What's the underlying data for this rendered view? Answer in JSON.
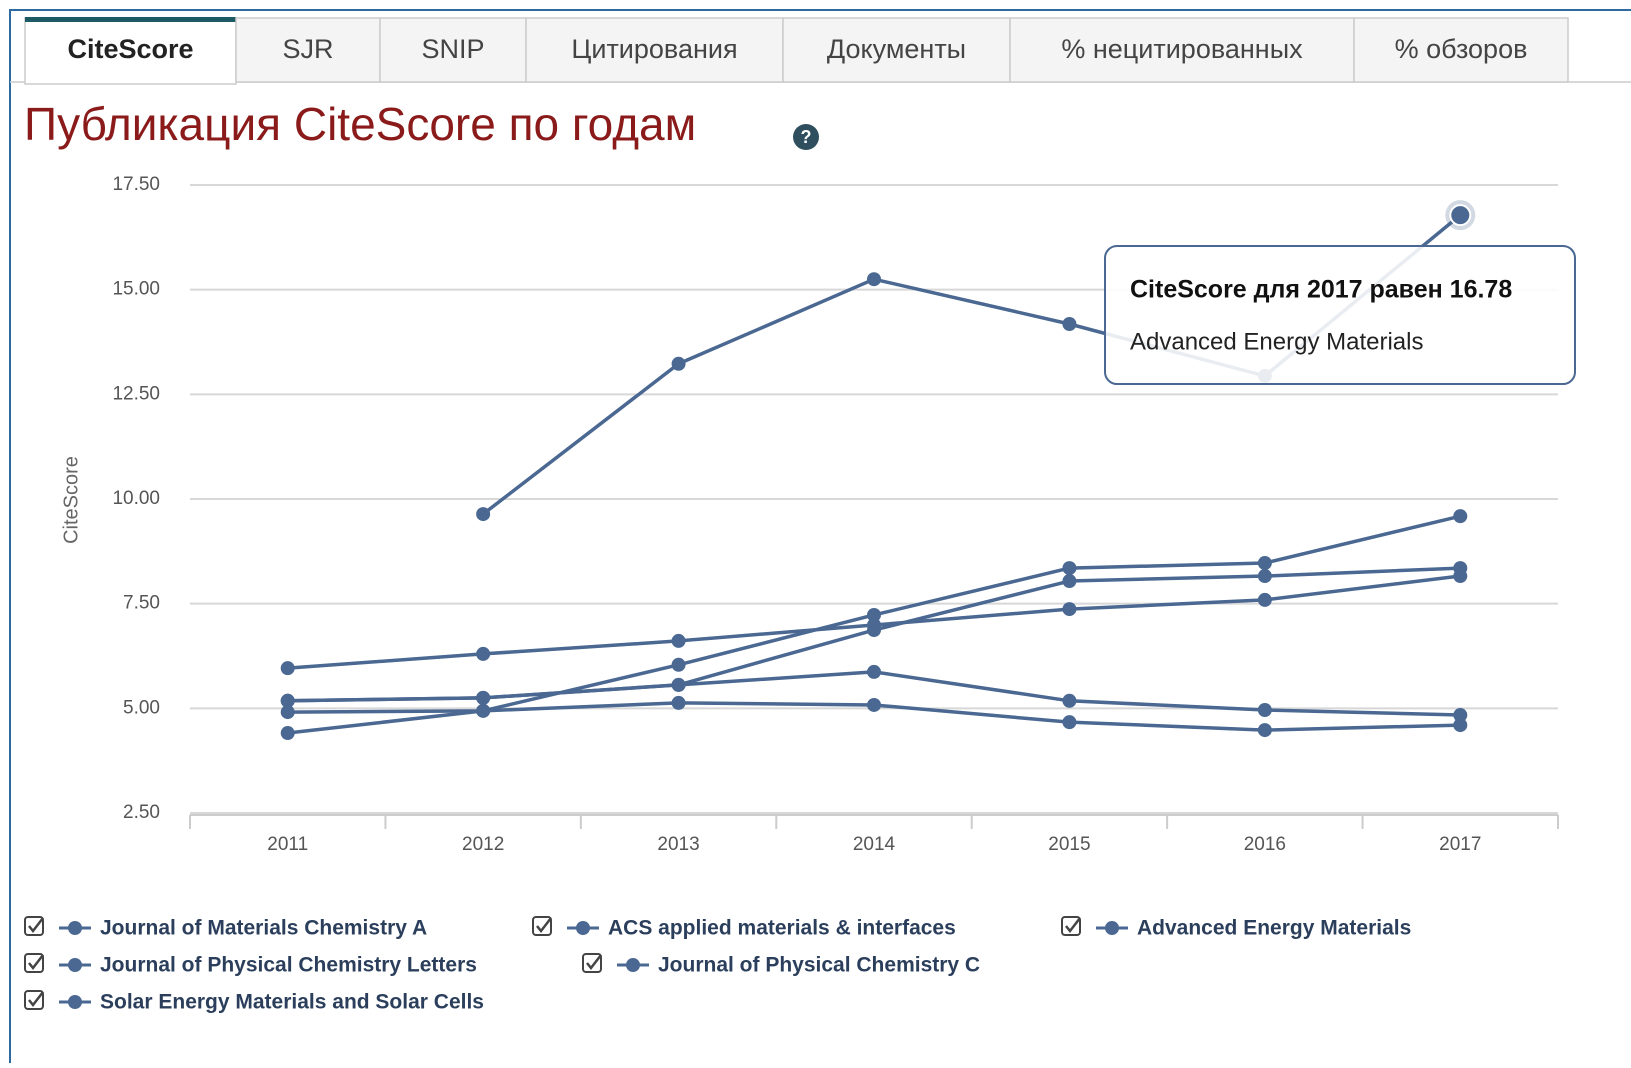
{
  "tabs": [
    "CiteScore",
    "SJR",
    "SNIP",
    "Цитирования",
    "Документы",
    "% нецитированных",
    "% обзоров"
  ],
  "chart_data": {
    "type": "line",
    "title": "Публикация CiteScore по годам",
    "y_label": "CiteScore",
    "categories": [
      "2011",
      "2012",
      "2013",
      "2014",
      "2015",
      "2016",
      "2017"
    ],
    "ylim": [
      2.5,
      17.5
    ],
    "yticks": [
      {
        "value": 2.5,
        "label": "2.50"
      },
      {
        "value": 5,
        "label": "5.00"
      },
      {
        "value": 7.5,
        "label": "7.50"
      },
      {
        "value": 10,
        "label": "10.00"
      },
      {
        "value": 12.5,
        "label": "12.50"
      },
      {
        "value": 15,
        "label": "15.00"
      },
      {
        "value": 17.5,
        "label": "17.50"
      }
    ],
    "grid": true,
    "series": [
      {
        "name": "Journal of Materials Chemistry A",
        "color": "#4a6891",
        "values": [
          4.41,
          4.94,
          6.04,
          7.23,
          8.35,
          8.47,
          9.59
        ]
      },
      {
        "name": "ACS applied materials & interfaces",
        "color": "#4a6891",
        "values": [
          5.18,
          5.25,
          5.56,
          6.87,
          8.04,
          8.16,
          8.35
        ]
      },
      {
        "name": "Advanced Energy Materials",
        "color": "#4a6891",
        "values": [
          null,
          9.64,
          13.23,
          15.25,
          14.18,
          12.94,
          16.78
        ]
      },
      {
        "name": "Journal of Physical Chemistry Letters",
        "color": "#4a6891",
        "values": [
          5.96,
          6.3,
          6.61,
          6.99,
          7.37,
          7.59,
          8.16
        ]
      },
      {
        "name": "Journal of Physical Chemistry C",
        "color": "#4a6891",
        "values": [
          5.18,
          5.25,
          5.56,
          5.87,
          5.18,
          4.96,
          4.84
        ]
      },
      {
        "name": "Solar Energy Materials and Solar Cells",
        "color": "#4a6891",
        "values": [
          4.91,
          4.94,
          5.13,
          5.08,
          4.67,
          4.48,
          4.6
        ]
      }
    ],
    "tooltip": {
      "title": "CiteScore для 2017 равен 16.78",
      "text": "Advanced Energy Materials"
    }
  }
}
